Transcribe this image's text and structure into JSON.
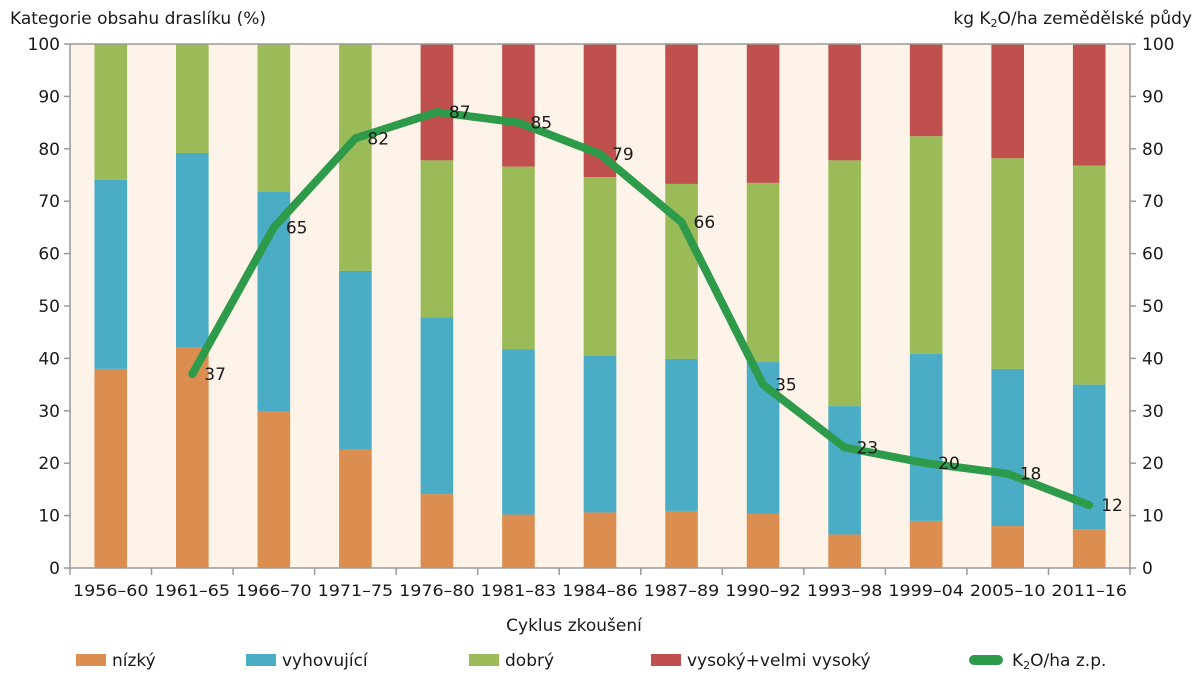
{
  "chart_data": {
    "type": "bar",
    "stacked": true,
    "title": "",
    "ylabel_left": "Kategorie obsahu draslíku (%)",
    "ylabel_right_parts": [
      "kg K",
      "2",
      "O/ha zemědělské půdy"
    ],
    "xlabel": "Cyklus zkoušení",
    "ylim": [
      0,
      100
    ],
    "y2lim": [
      0,
      100
    ],
    "yticks": [
      0,
      10,
      20,
      30,
      40,
      50,
      60,
      70,
      80,
      90,
      100
    ],
    "grid": false,
    "legend_position": "bottom",
    "categories": [
      "1956–60",
      "1961–65",
      "1966–70",
      "1971–75",
      "1976–80",
      "1981–83",
      "1984–86",
      "1987–89",
      "1990–92",
      "1993–98",
      "1999–04",
      "2005–10",
      "2011–16"
    ],
    "series": [
      {
        "name": "nízký",
        "color": "#dc8e50",
        "values": [
          38.0,
          42.1,
          29.8,
          22.6,
          14.1,
          10.2,
          10.6,
          10.9,
          10.4,
          6.4,
          9.0,
          8.0,
          7.4
        ]
      },
      {
        "name": "vyhovující",
        "color": "#4bacc6",
        "values": [
          36.1,
          37.1,
          42.1,
          34.1,
          33.7,
          31.5,
          30.0,
          29.0,
          28.9,
          24.5,
          31.9,
          30.0,
          27.6
        ]
      },
      {
        "name": "dobrý",
        "color": "#9bbb59",
        "values": [
          25.9,
          20.8,
          28.1,
          43.3,
          30.0,
          34.9,
          34.0,
          33.4,
          34.2,
          46.9,
          41.5,
          40.2,
          41.8
        ]
      },
      {
        "name": "vysoký+velmi vysoký",
        "color": "#c0504d",
        "values": [
          0,
          0,
          0,
          0,
          22.2,
          23.4,
          25.4,
          26.7,
          26.5,
          22.2,
          17.6,
          21.8,
          23.2
        ]
      }
    ],
    "line_series": {
      "name_parts": [
        "K",
        "2",
        "O/ha z.p."
      ],
      "color": "#2e9b4a",
      "axis": "right",
      "values": [
        null,
        37,
        65,
        82,
        87,
        85,
        79,
        66,
        35,
        23,
        20,
        18,
        12
      ],
      "labels": [
        "",
        "37",
        "65",
        "82",
        "87",
        "85",
        "79",
        "66",
        "35",
        "23",
        "20",
        "18",
        "12"
      ]
    },
    "plot_background": "#fdf3e8"
  }
}
